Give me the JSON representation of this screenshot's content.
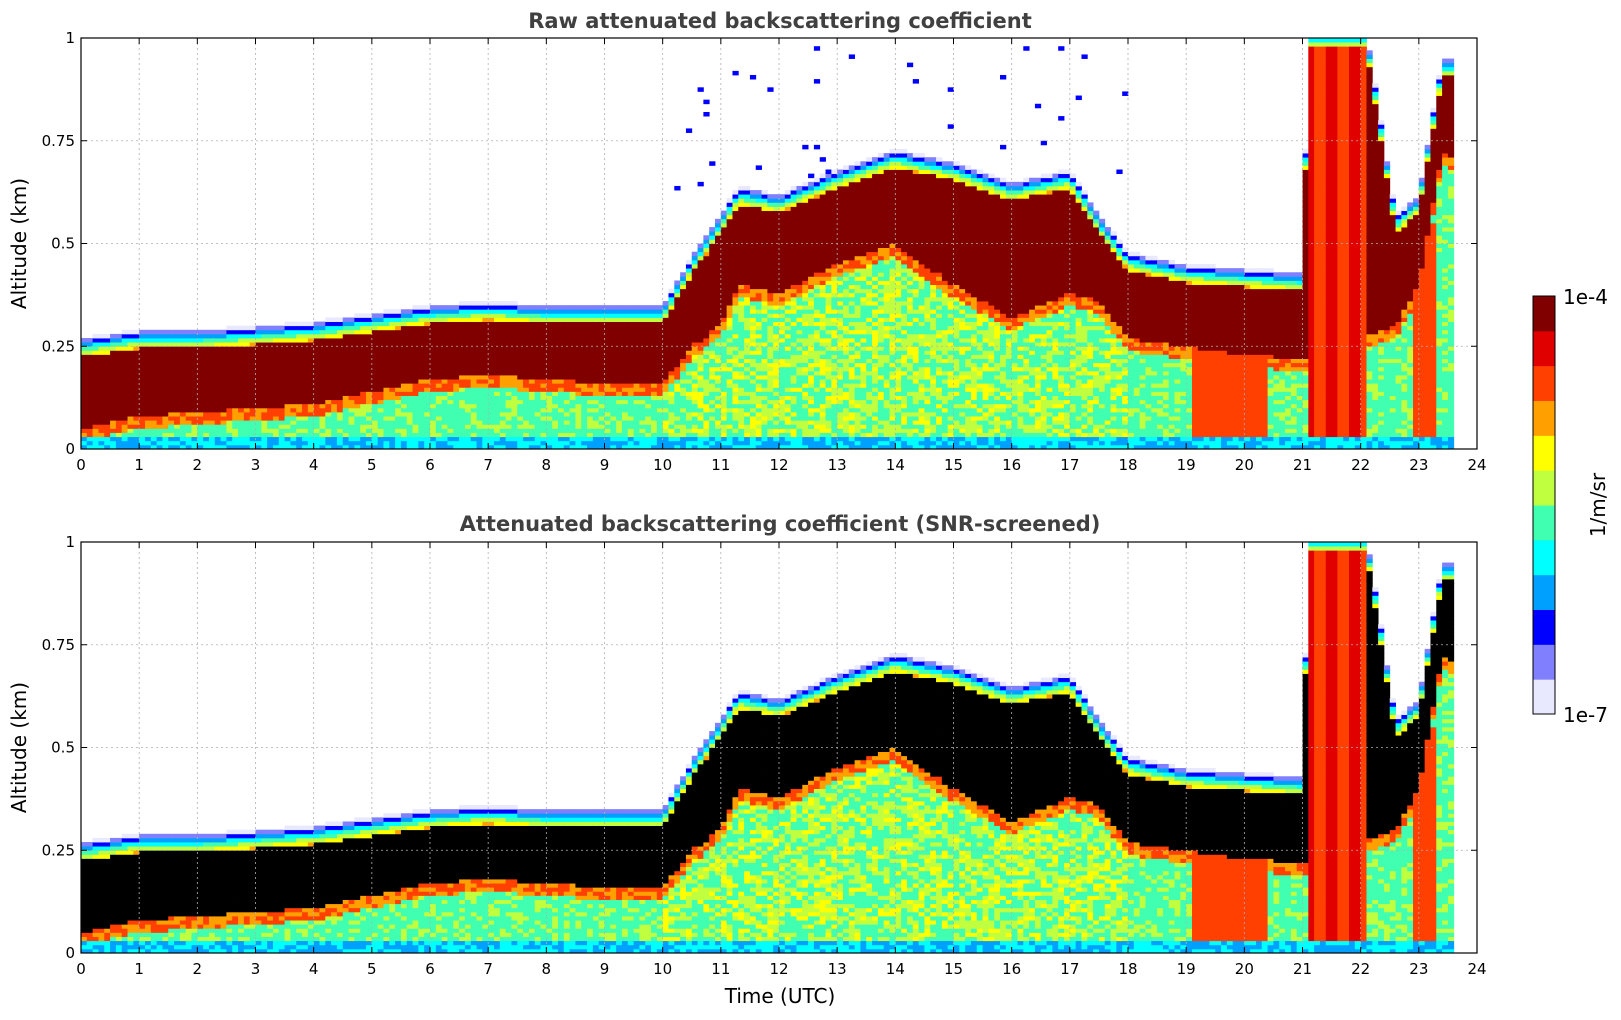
{
  "chart_data": [
    {
      "type": "heatmap",
      "title": "Raw attenuated backscattering coefficient",
      "xlabel": "",
      "ylabel": "Altitude (km)",
      "xlim": [
        0,
        24
      ],
      "ylim": [
        0,
        1
      ],
      "xticks": [
        "0",
        "1",
        "2",
        "3",
        "4",
        "5",
        "6",
        "7",
        "8",
        "9",
        "10",
        "11",
        "12",
        "13",
        "14",
        "15",
        "16",
        "17",
        "18",
        "19",
        "20",
        "21",
        "22",
        "23",
        "24"
      ],
      "yticks": [
        "0",
        "0.25",
        "0.5",
        "0.75",
        "1"
      ],
      "grid": true,
      "layer_top_km": [
        {
          "t": 0,
          "z": 0.25
        },
        {
          "t": 1,
          "z": 0.27
        },
        {
          "t": 2,
          "z": 0.27
        },
        {
          "t": 3,
          "z": 0.28
        },
        {
          "t": 4,
          "z": 0.29
        },
        {
          "t": 5,
          "z": 0.31
        },
        {
          "t": 6,
          "z": 0.33
        },
        {
          "t": 7,
          "z": 0.34
        },
        {
          "t": 8,
          "z": 0.33
        },
        {
          "t": 9,
          "z": 0.33
        },
        {
          "t": 10,
          "z": 0.33
        },
        {
          "t": 10.5,
          "z": 0.45
        },
        {
          "t": 11,
          "z": 0.55
        },
        {
          "t": 11.3,
          "z": 0.62
        },
        {
          "t": 12,
          "z": 0.6
        },
        {
          "t": 13,
          "z": 0.66
        },
        {
          "t": 14,
          "z": 0.71
        },
        {
          "t": 15,
          "z": 0.68
        },
        {
          "t": 16,
          "z": 0.63
        },
        {
          "t": 17,
          "z": 0.66
        },
        {
          "t": 17.5,
          "z": 0.55
        },
        {
          "t": 18,
          "z": 0.46
        },
        {
          "t": 19,
          "z": 0.43
        },
        {
          "t": 20,
          "z": 0.42
        },
        {
          "t": 21,
          "z": 0.41
        },
        {
          "t": 21.1,
          "z": 1.0
        },
        {
          "t": 22.1,
          "z": 1.0
        },
        {
          "t": 22.6,
          "z": 0.55
        },
        {
          "t": 23,
          "z": 0.6
        },
        {
          "t": 23.4,
          "z": 0.93
        },
        {
          "t": 23.65,
          "z": 0.93
        }
      ],
      "layer_base_km": [
        {
          "t": 0,
          "z": 0.05
        },
        {
          "t": 1,
          "z": 0.08
        },
        {
          "t": 2,
          "z": 0.09
        },
        {
          "t": 3,
          "z": 0.1
        },
        {
          "t": 4,
          "z": 0.11
        },
        {
          "t": 5,
          "z": 0.14
        },
        {
          "t": 6,
          "z": 0.17
        },
        {
          "t": 7,
          "z": 0.18
        },
        {
          "t": 8,
          "z": 0.17
        },
        {
          "t": 9,
          "z": 0.16
        },
        {
          "t": 10,
          "z": 0.16
        },
        {
          "t": 10.5,
          "z": 0.25
        },
        {
          "t": 11,
          "z": 0.3
        },
        {
          "t": 11.3,
          "z": 0.4
        },
        {
          "t": 12,
          "z": 0.38
        },
        {
          "t": 13,
          "z": 0.45
        },
        {
          "t": 14,
          "z": 0.5
        },
        {
          "t": 15,
          "z": 0.4
        },
        {
          "t": 16,
          "z": 0.32
        },
        {
          "t": 17,
          "z": 0.38
        },
        {
          "t": 17.5,
          "z": 0.36
        },
        {
          "t": 18,
          "z": 0.27
        },
        {
          "t": 19,
          "z": 0.25
        },
        {
          "t": 20,
          "z": 0.23
        },
        {
          "t": 21,
          "z": 0.22
        },
        {
          "t": 22.6,
          "z": 0.3
        },
        {
          "t": 23,
          "z": 0.4
        },
        {
          "t": 23.4,
          "z": 0.72
        },
        {
          "t": 23.65,
          "z": 0.7
        }
      ]
    },
    {
      "type": "heatmap",
      "title": "Attenuated backscattering coefficient (SNR-screened)",
      "xlabel": "Time (UTC)",
      "ylabel": "Altitude (km)",
      "xlim": [
        0,
        24
      ],
      "ylim": [
        0,
        1
      ],
      "xticks": [
        "0",
        "1",
        "2",
        "3",
        "4",
        "5",
        "6",
        "7",
        "8",
        "9",
        "10",
        "11",
        "12",
        "13",
        "14",
        "15",
        "16",
        "17",
        "18",
        "19",
        "20",
        "21",
        "22",
        "23",
        "24"
      ],
      "yticks": [
        "0",
        "0.25",
        "0.5",
        "0.75",
        "1"
      ],
      "grid": true
    }
  ],
  "colorbar": {
    "max_label": "1e-4",
    "min_label": "1e-7",
    "unit_label": "1/m/sr",
    "colors": [
      "#e8e8ff",
      "#8080ff",
      "#0000ff",
      "#00a0ff",
      "#00ffff",
      "#40ffb0",
      "#c0ff40",
      "#ffff00",
      "#ffa000",
      "#ff4000",
      "#e00000",
      "#800000"
    ]
  }
}
